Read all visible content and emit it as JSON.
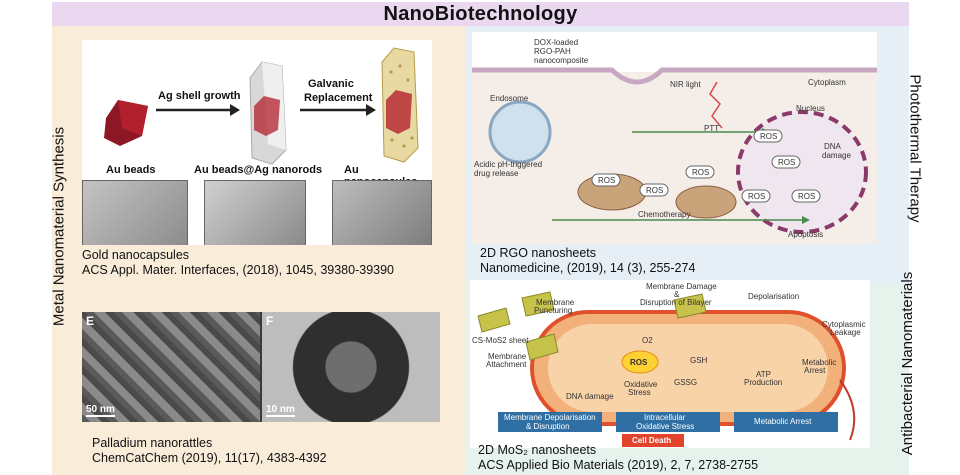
{
  "title": "NanoBiotechnology",
  "side_labels": {
    "left": "Metal Nanomaterial Synthesis",
    "right_top": "Photothermal Therapy",
    "right_bottom": "Antibacterial Nanomaterials"
  },
  "gold": {
    "step1": "Ag shell growth",
    "step2a": "Galvanic",
    "step2b": "Replacement",
    "label1": "Au beads",
    "label2": "Au beads@Ag nanorods",
    "label3": "Au nanocapsules",
    "caption_line1": "Gold nanocapsules",
    "caption_line2": "ACS Appl. Mater. Interfaces, (2018), 1045, 39380-39390"
  },
  "pd": {
    "panel_e": "E",
    "panel_f": "F",
    "scale_e": "50 nm",
    "scale_f": "10 nm",
    "caption_line1": "Palladium nanorattles",
    "caption_line2": "ChemCatChem (2019), 11(17), 4383-4392"
  },
  "rgo": {
    "dox1": "DOX-loaded",
    "dox2": "RGO-PAH",
    "dox3": "nanocomposite",
    "nir": "NIR light",
    "cytoplasm": "Cytoplasm",
    "endosome": "Endosome",
    "nucleus": "Nucleus",
    "ptt": "PTT",
    "dna1": "DNA",
    "dna2": "damage",
    "acidic1": "Acidic pH-triggered",
    "acidic2": "drug release",
    "ros": "ROS",
    "chemo": "Chemotherapy",
    "apoptosis": "Apoptosis",
    "caption_line1": "2D RGO nanosheets",
    "caption_line2": "Nanomedicine, (2019), 14 (3), 255-274"
  },
  "mos2": {
    "mem_damage1": "Membrane Damage",
    "mem_damage2": "&",
    "mem_damage3": "Disruption of Bilayer",
    "depol": "Depolarisation",
    "mem_punct1": "Membrane",
    "mem_punct2": "Puncturing",
    "sheet": "CS-MoS2 sheet",
    "mem_attach1": "Membrane",
    "mem_attach2": "Attachment",
    "ros": "ROS",
    "o2": "O2",
    "gsh": "GSH",
    "gssg": "GSSG",
    "ox1": "Oxidative",
    "ox2": "Stress",
    "dna": "DNA damage",
    "cyto1": "Cytoplasmic",
    "cyto2": "Leakage",
    "atp1": "ATP",
    "atp2": "Production",
    "meta1": "Metabolic",
    "meta2": "Arrest",
    "box1a": "Membrane Depolarisation",
    "box1b": "& Disruption",
    "box2a": "Intracellular",
    "box2b": "Oxidative Stress",
    "box3": "Metabolic Arrest",
    "cell_death": "Cell Death",
    "caption_line1": "2D MoS₂ nanosheets",
    "caption_line2": "ACS Applied Bio Materials (2019), 2, 7, 2738-2755"
  },
  "colors": {
    "title_bg": "#e9d8ef",
    "left_bg": "#f9ecd9",
    "right_top_bg": "#e6eef6",
    "right_bottom_bg": "#e6f3ec",
    "gold_rod": "#b3202d",
    "bacteria": "#f2b07a",
    "cell_death": "#e2432b"
  }
}
